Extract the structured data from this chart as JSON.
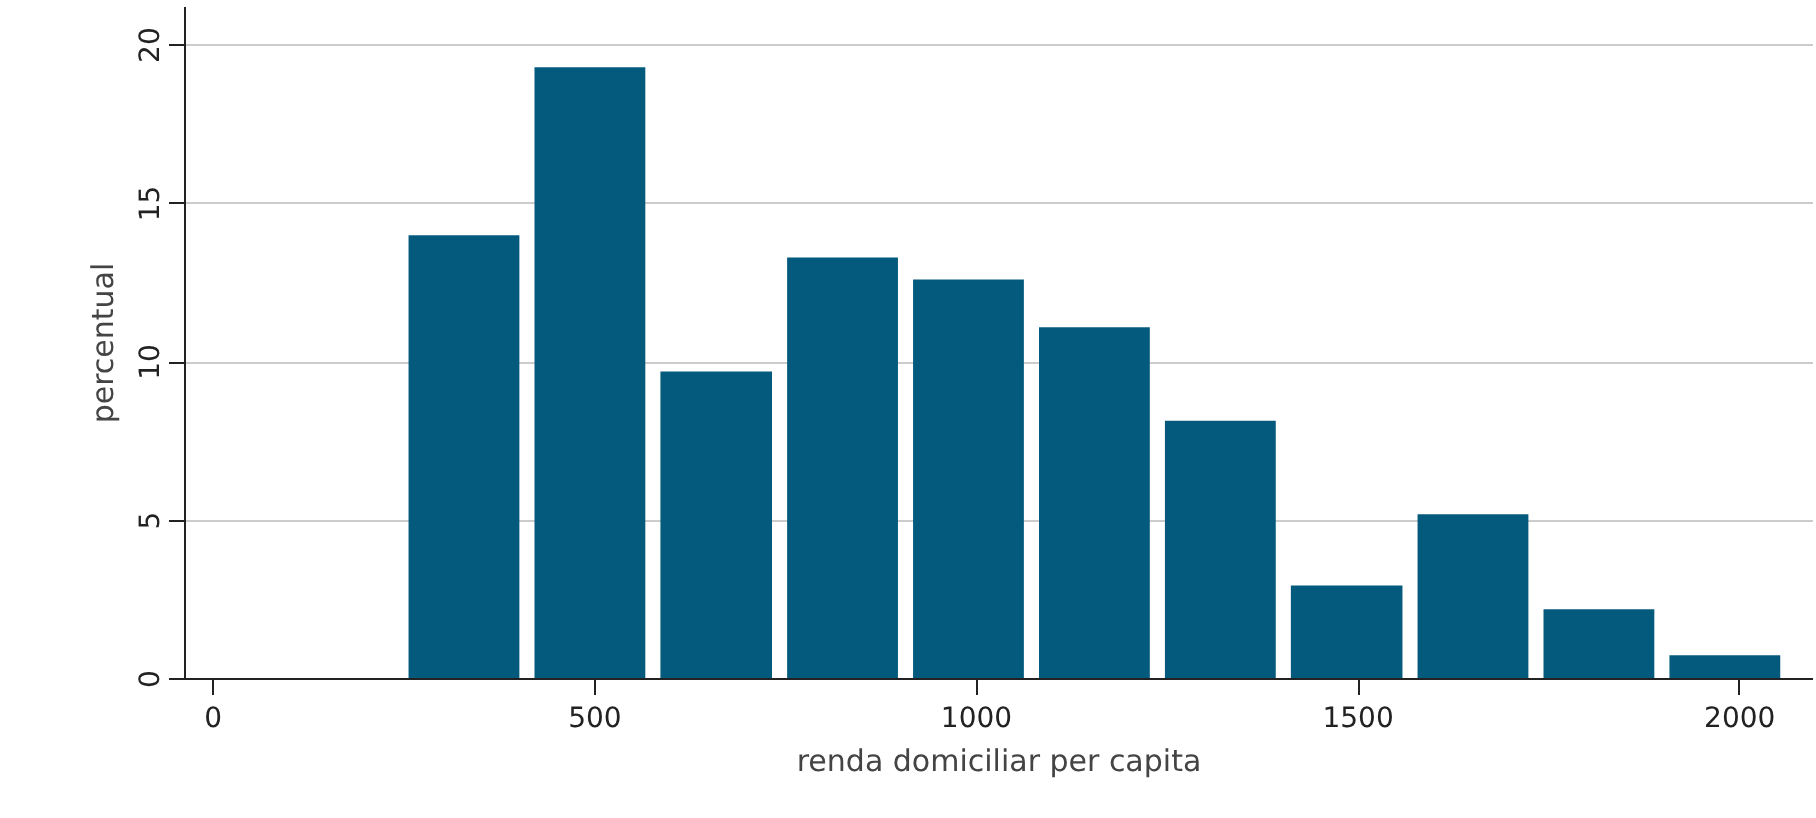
{
  "chart_data": {
    "type": "histogram",
    "xlabel": "renda domiciliar per capita",
    "ylabel": "percentual",
    "bins": [
      246,
      411,
      576,
      742,
      907,
      1072,
      1237,
      1402,
      1568,
      1733,
      1898,
      2063
    ],
    "values": [
      14.0,
      19.3,
      9.7,
      13.3,
      12.6,
      11.1,
      8.15,
      2.95,
      5.2,
      2.2,
      0.75
    ],
    "color": "#045a7d",
    "xlim": [
      -37,
      2096
    ],
    "ylim": [
      0,
      21.2
    ],
    "xticks": [
      0,
      500,
      1000,
      1500,
      2000
    ],
    "yticks": [
      0,
      5,
      10,
      15,
      20
    ],
    "grid": "y"
  }
}
